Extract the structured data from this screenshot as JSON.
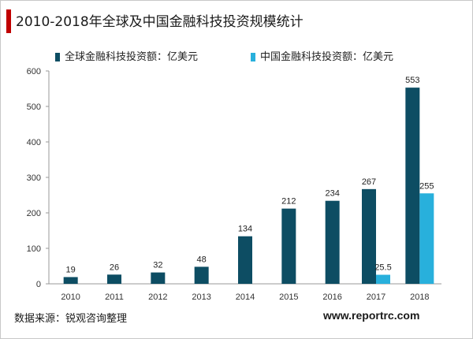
{
  "title": "2010-2018年全球及中国金融科技投资规模统计",
  "legend": {
    "global_label": "全球金融科技投资额：亿美元",
    "china_label": "中国金融科技投资额：亿美元"
  },
  "footer": {
    "source": "数据来源：锐观咨询整理",
    "website": "www.reportrc.com"
  },
  "colors": {
    "global": "#0d4d63",
    "china": "#28b0dc",
    "title_accent": "#c00000"
  },
  "chart_data": {
    "type": "bar",
    "categories": [
      "2010",
      "2011",
      "2012",
      "2013",
      "2014",
      "2015",
      "2016",
      "2017",
      "2018"
    ],
    "series": [
      {
        "name": "全球金融科技投资额：亿美元",
        "values": [
          19,
          26,
          32,
          48,
          134,
          212,
          234,
          267,
          553
        ],
        "labels": [
          "19",
          "26",
          "32",
          "48",
          "134",
          "212",
          "234",
          "267",
          "553"
        ]
      },
      {
        "name": "中国金融科技投资额：亿美元",
        "values": [
          null,
          null,
          null,
          null,
          null,
          null,
          null,
          25.5,
          255
        ],
        "labels": [
          null,
          null,
          null,
          null,
          null,
          null,
          null,
          "25.5",
          "255"
        ]
      }
    ],
    "ylim": [
      0,
      600
    ],
    "yticks": [
      0,
      100,
      200,
      300,
      400,
      500,
      600
    ],
    "grid": false,
    "legend_position": "top"
  }
}
